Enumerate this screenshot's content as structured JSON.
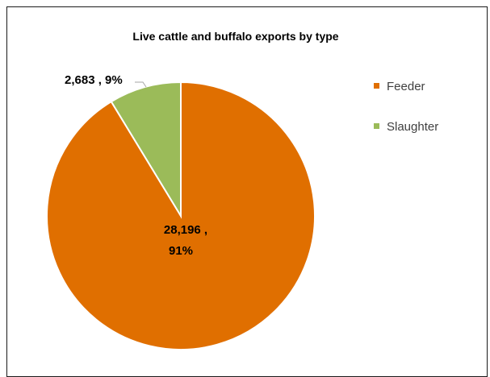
{
  "chart_data": {
    "type": "pie",
    "title": "Live cattle and buffalo exports by type",
    "legend_position": "right",
    "slices": [
      {
        "name": "Feeder",
        "value": 28196,
        "percent": 91,
        "color": "#E06F00",
        "label_line1": "28,196 ,",
        "label_line2": "91%"
      },
      {
        "name": "Slaughter",
        "value": 2683,
        "percent": 9,
        "color": "#9BBB59",
        "label_line1": "2,683 , 9%",
        "label_line2": ""
      }
    ]
  }
}
